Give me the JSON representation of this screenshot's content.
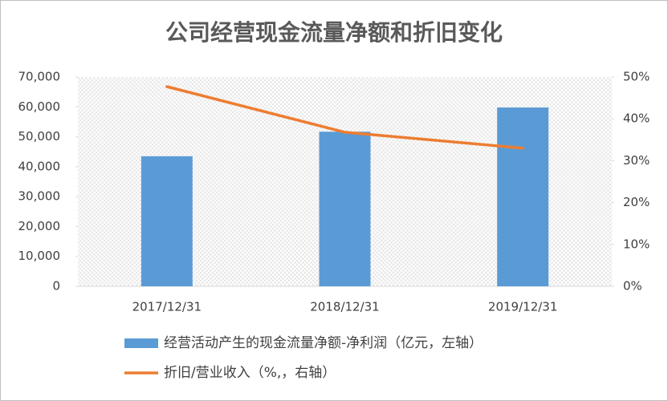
{
  "chart_data": {
    "type": "combo",
    "title": "公司经营现金流量净额和折旧变化",
    "categories": [
      "2017/12/31",
      "2018/12/31",
      "2019/12/31"
    ],
    "series": [
      {
        "name": "经营活动产生的现金流量净额-净利润（亿元，左轴）",
        "type": "bar",
        "color": "#5b9bd5",
        "values": [
          43500,
          51700,
          59800
        ]
      },
      {
        "name": "折旧/营业收入（%,，右轴）",
        "type": "line",
        "axis": "y2",
        "color": "#ed7d31",
        "values": [
          47.7,
          36.8,
          33.0
        ]
      }
    ],
    "ylim": [
      0,
      70000
    ],
    "yticks": [
      0,
      {
        "value": 10000,
        "label": "10,000"
      },
      {
        "value": 20000,
        "label": "20,000"
      },
      {
        "value": 30000,
        "label": "30,000"
      },
      {
        "value": 40000,
        "label": "40,000"
      },
      {
        "value": 50000,
        "label": "50,000"
      },
      {
        "value": 60000,
        "label": "60,000"
      },
      {
        "value": 70000,
        "label": "70,000"
      }
    ],
    "y2lim": [
      0,
      50
    ],
    "y2ticks": [
      {
        "value": 0,
        "label": "0%"
      },
      {
        "value": 10,
        "label": "10%"
      },
      {
        "value": 20,
        "label": "20%"
      },
      {
        "value": 30,
        "label": "30%"
      },
      {
        "value": 40,
        "label": "40%"
      },
      {
        "value": 50,
        "label": "50%"
      }
    ]
  }
}
